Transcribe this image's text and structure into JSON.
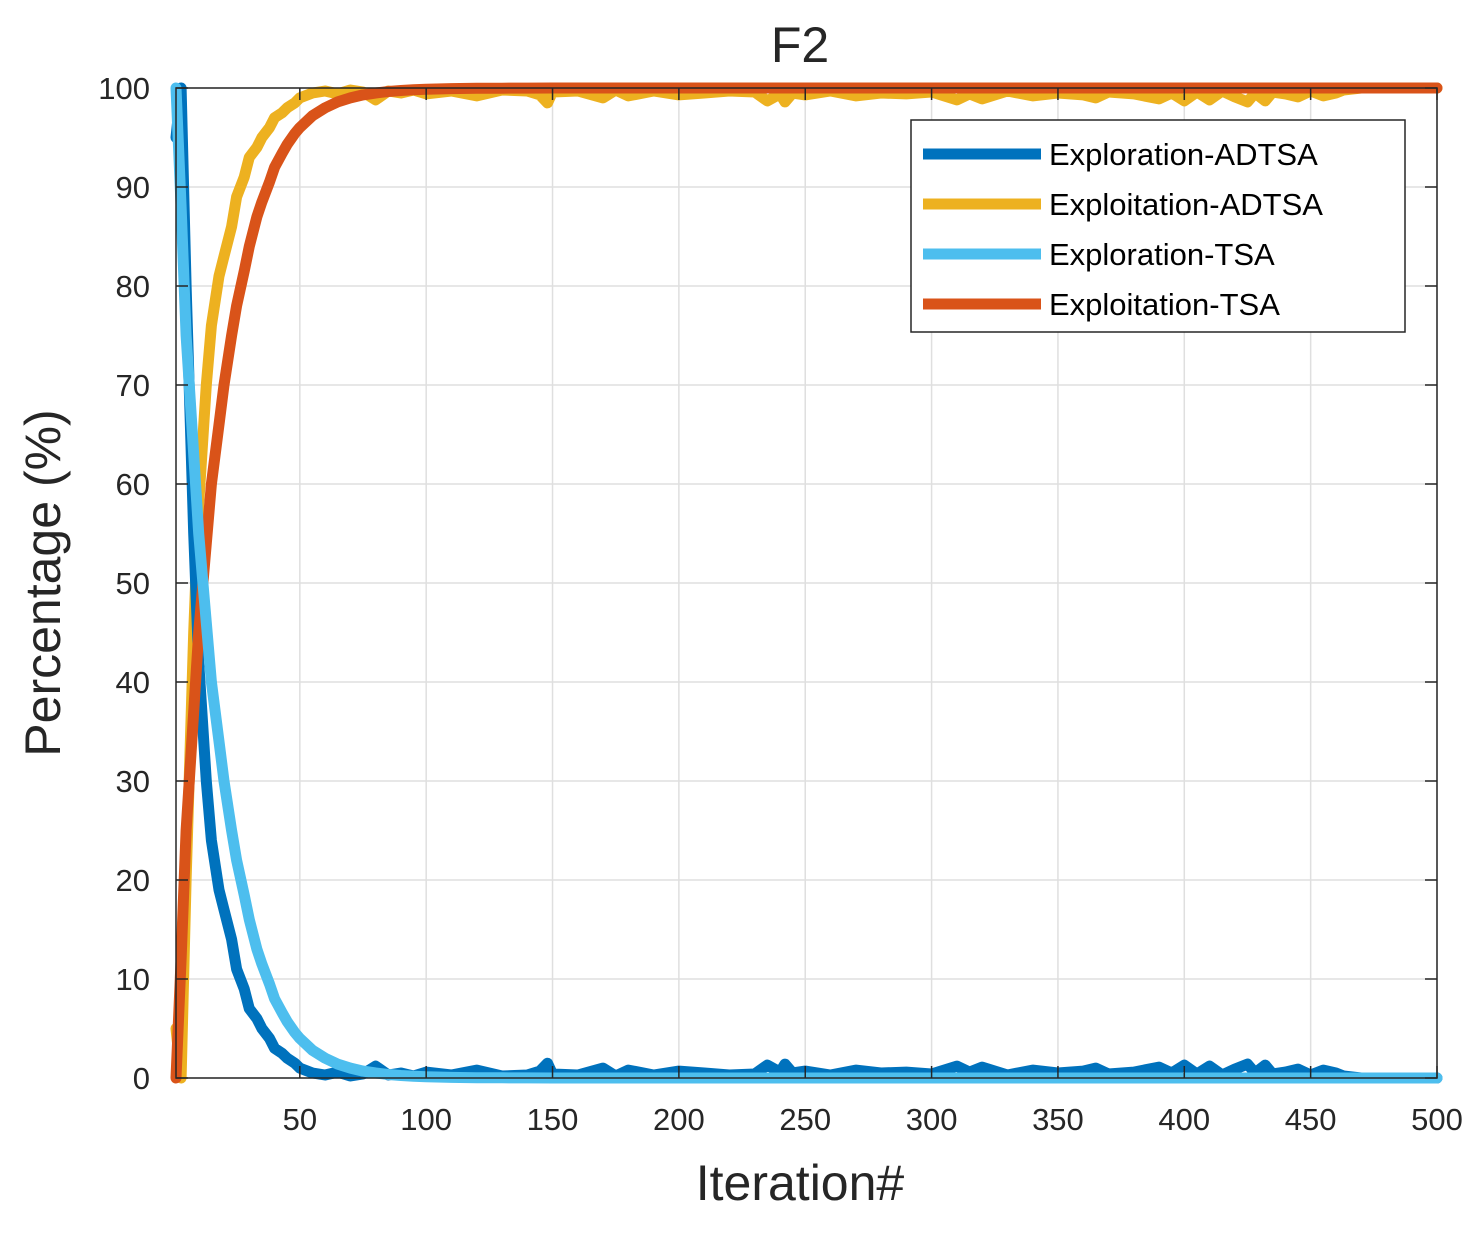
{
  "chart_data": {
    "type": "line",
    "title": "F2",
    "xlabel": "Iteration#",
    "ylabel": "Percentage (%)",
    "xlim": [
      1,
      500
    ],
    "ylim": [
      0,
      100
    ],
    "xticks": [
      50,
      100,
      150,
      200,
      250,
      300,
      350,
      400,
      450,
      500
    ],
    "yticks": [
      0,
      10,
      20,
      30,
      40,
      50,
      60,
      70,
      80,
      90,
      100
    ],
    "xtick_labels": [
      "50",
      "100",
      "150",
      "200",
      "250",
      "300",
      "350",
      "400",
      "450",
      "500"
    ],
    "ytick_labels": [
      "0",
      "10",
      "20",
      "30",
      "40",
      "50",
      "60",
      "70",
      "80",
      "90",
      "100"
    ],
    "grid": true,
    "legend_position": "top-right",
    "series": [
      {
        "name": "Exploration-ADTSA",
        "color": "#0072BD",
        "x": [
          1,
          3,
          5,
          8,
          10,
          13,
          15,
          18,
          20,
          23,
          25,
          28,
          30,
          33,
          35,
          38,
          40,
          43,
          45,
          48,
          50,
          55,
          60,
          65,
          70,
          75,
          80,
          85,
          90,
          95,
          100,
          110,
          120,
          130,
          140,
          145,
          148,
          150,
          160,
          170,
          175,
          180,
          190,
          200,
          210,
          220,
          230,
          235,
          240,
          242,
          245,
          250,
          260,
          270,
          280,
          290,
          300,
          310,
          315,
          320,
          330,
          340,
          350,
          360,
          365,
          370,
          380,
          390,
          395,
          400,
          405,
          410,
          415,
          420,
          425,
          428,
          432,
          435,
          440,
          445,
          450,
          455,
          460,
          463,
          470,
          480,
          490,
          500
        ],
        "y": [
          95,
          100,
          80,
          55,
          42,
          30,
          24,
          19,
          17,
          14,
          11,
          9,
          7,
          6,
          5,
          4,
          3,
          2.5,
          2,
          1.5,
          1,
          0.5,
          0.3,
          0.6,
          0.2,
          0.4,
          1.2,
          0.3,
          0.5,
          0.2,
          0.6,
          0.3,
          0.8,
          0.2,
          0.3,
          0.7,
          1.5,
          0.4,
          0.3,
          1.0,
          0.2,
          0.8,
          0.3,
          0.7,
          0.5,
          0.3,
          0.4,
          1.3,
          0.6,
          1.4,
          0.5,
          0.7,
          0.3,
          0.8,
          0.5,
          0.6,
          0.4,
          1.2,
          0.6,
          1.1,
          0.3,
          0.8,
          0.5,
          0.7,
          1.0,
          0.4,
          0.6,
          1.1,
          0.5,
          1.3,
          0.4,
          1.2,
          0.3,
          0.9,
          1.4,
          0.5,
          1.3,
          0.4,
          0.6,
          0.9,
          0.3,
          0.8,
          0.5,
          0.2,
          0,
          0,
          0,
          0
        ]
      },
      {
        "name": "Exploitation-ADTSA",
        "color": "#EDB120",
        "x": [
          1,
          3,
          5,
          8,
          10,
          13,
          15,
          18,
          20,
          23,
          25,
          28,
          30,
          33,
          35,
          38,
          40,
          43,
          45,
          48,
          50,
          55,
          60,
          65,
          70,
          75,
          80,
          85,
          90,
          95,
          100,
          110,
          120,
          130,
          140,
          145,
          148,
          150,
          160,
          170,
          175,
          180,
          190,
          200,
          210,
          220,
          230,
          235,
          240,
          242,
          245,
          250,
          260,
          270,
          280,
          290,
          300,
          310,
          315,
          320,
          330,
          340,
          350,
          360,
          365,
          370,
          380,
          390,
          395,
          400,
          405,
          410,
          415,
          420,
          425,
          428,
          432,
          435,
          440,
          445,
          450,
          455,
          460,
          463,
          470,
          480,
          490,
          500
        ],
        "y": [
          5,
          0,
          20,
          45,
          58,
          70,
          76,
          81,
          83,
          86,
          89,
          91,
          93,
          94,
          95,
          96,
          97,
          97.5,
          98,
          98.5,
          99,
          99.5,
          99.7,
          99.4,
          99.8,
          99.6,
          98.8,
          99.7,
          99.5,
          99.8,
          99.4,
          99.7,
          99.2,
          99.8,
          99.7,
          99.3,
          98.5,
          99.6,
          99.7,
          99.0,
          99.8,
          99.2,
          99.7,
          99.3,
          99.5,
          99.7,
          99.6,
          98.7,
          99.4,
          98.6,
          99.5,
          99.3,
          99.7,
          99.2,
          99.5,
          99.4,
          99.6,
          98.8,
          99.4,
          98.9,
          99.7,
          99.2,
          99.5,
          99.3,
          99.0,
          99.6,
          99.4,
          98.9,
          99.5,
          98.7,
          99.6,
          98.8,
          99.7,
          99.1,
          98.6,
          99.5,
          98.7,
          99.6,
          99.4,
          99.1,
          99.7,
          99.2,
          99.5,
          99.8,
          100,
          100,
          100,
          100
        ]
      },
      {
        "name": "Exploration-TSA",
        "color": "#4DBEEE",
        "x": [
          1,
          3,
          5,
          8,
          10,
          13,
          15,
          18,
          20,
          23,
          25,
          28,
          30,
          33,
          35,
          38,
          40,
          43,
          45,
          48,
          50,
          55,
          60,
          65,
          70,
          75,
          80,
          85,
          90,
          95,
          100,
          110,
          120,
          130,
          140,
          150,
          175,
          200,
          250,
          300,
          350,
          400,
          450,
          500
        ],
        "y": [
          100,
          88,
          75,
          63,
          55,
          46,
          40,
          34,
          30,
          25,
          22,
          18.5,
          16,
          13,
          11.5,
          9.5,
          8,
          6.6,
          5.7,
          4.6,
          4,
          2.8,
          2,
          1.4,
          1.0,
          0.7,
          0.5,
          0.35,
          0.25,
          0.18,
          0.12,
          0.06,
          0.03,
          0.02,
          0.01,
          0,
          0,
          0,
          0,
          0,
          0,
          0,
          0,
          0
        ]
      },
      {
        "name": "Exploitation-TSA",
        "color": "#D95319",
        "x": [
          1,
          3,
          5,
          8,
          10,
          13,
          15,
          18,
          20,
          23,
          25,
          28,
          30,
          33,
          35,
          38,
          40,
          43,
          45,
          48,
          50,
          55,
          60,
          65,
          70,
          75,
          80,
          85,
          90,
          95,
          100,
          110,
          120,
          130,
          140,
          150,
          175,
          200,
          250,
          300,
          350,
          400,
          450,
          500
        ],
        "y": [
          0,
          12,
          25,
          37,
          45,
          54,
          60,
          66,
          70,
          75,
          78,
          81.5,
          84,
          87,
          88.5,
          90.5,
          92,
          93.4,
          94.3,
          95.4,
          96,
          97.2,
          98,
          98.6,
          99.0,
          99.3,
          99.5,
          99.65,
          99.75,
          99.82,
          99.88,
          99.94,
          99.97,
          99.98,
          99.99,
          100,
          100,
          100,
          100,
          100,
          100,
          100,
          100,
          100
        ]
      }
    ]
  }
}
